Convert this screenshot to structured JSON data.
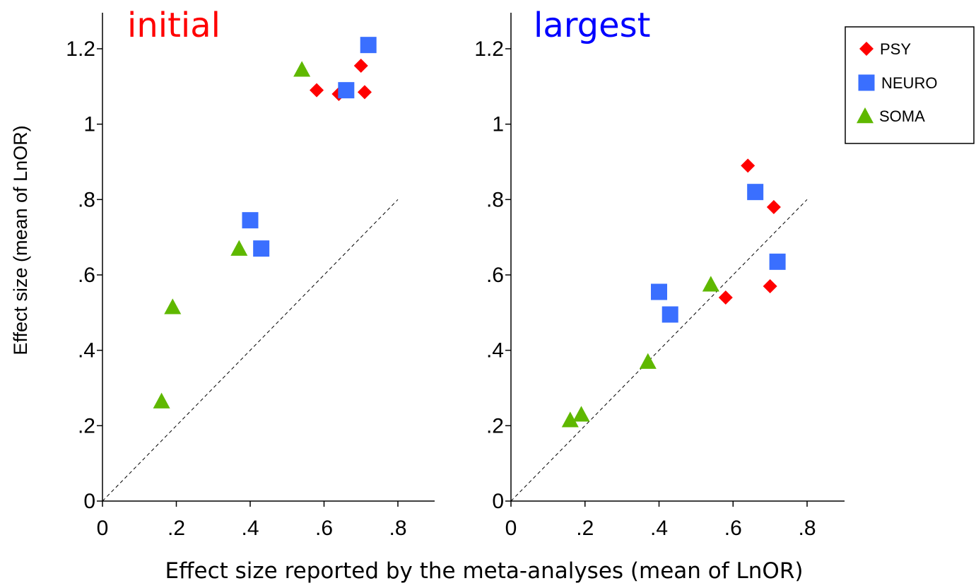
{
  "chart_data": {
    "type": "scatter",
    "ylabel": "Effect size (mean of LnOR)",
    "xlabel": "Effect size reported by the meta-analyses (mean of LnOR)",
    "xlim": [
      0,
      0.9
    ],
    "ylim": [
      0,
      1.3
    ],
    "x_ticks": [
      0,
      0.2,
      0.4,
      0.6,
      0.8
    ],
    "x_tick_labels": [
      "0",
      ".2",
      ".4",
      ".6",
      ".8"
    ],
    "y_ticks": [
      0,
      0.2,
      0.4,
      0.6,
      0.8,
      1.0,
      1.2
    ],
    "y_tick_labels": [
      "0",
      ".2",
      ".4",
      ".6",
      ".8",
      "1",
      "1.2"
    ],
    "reference_line": {
      "from": [
        0,
        0
      ],
      "to": [
        0.8,
        0.8
      ],
      "style": "dashed"
    },
    "legend": {
      "placement": "top-right",
      "entries": [
        {
          "label": "PSY",
          "marker": "diamond",
          "color": "#ff0000"
        },
        {
          "label": "NEURO",
          "marker": "square",
          "color": "#3a6fff"
        },
        {
          "label": "SOMA",
          "marker": "triangle",
          "color": "#5fb800"
        }
      ]
    },
    "panels": [
      {
        "title": "initial",
        "title_color": "#ff0000",
        "series": [
          {
            "name": "PSY",
            "x": [
              0.58,
              0.64,
              0.7,
              0.71
            ],
            "y": [
              1.09,
              1.08,
              1.155,
              1.085
            ]
          },
          {
            "name": "NEURO",
            "x": [
              0.4,
              0.43,
              0.66,
              0.72
            ],
            "y": [
              0.745,
              0.67,
              1.09,
              1.21
            ]
          },
          {
            "name": "SOMA",
            "x": [
              0.16,
              0.19,
              0.37,
              0.54
            ],
            "y": [
              0.265,
              0.515,
              0.67,
              1.145
            ]
          }
        ]
      },
      {
        "title": "largest",
        "title_color": "#0000ff",
        "series": [
          {
            "name": "PSY",
            "x": [
              0.58,
              0.64,
              0.7,
              0.71
            ],
            "y": [
              0.54,
              0.89,
              0.57,
              0.78
            ]
          },
          {
            "name": "NEURO",
            "x": [
              0.4,
              0.43,
              0.66,
              0.72
            ],
            "y": [
              0.555,
              0.495,
              0.82,
              0.635
            ]
          },
          {
            "name": "SOMA",
            "x": [
              0.16,
              0.19,
              0.37,
              0.54
            ],
            "y": [
              0.215,
              0.23,
              0.37,
              0.575
            ]
          }
        ]
      }
    ]
  }
}
